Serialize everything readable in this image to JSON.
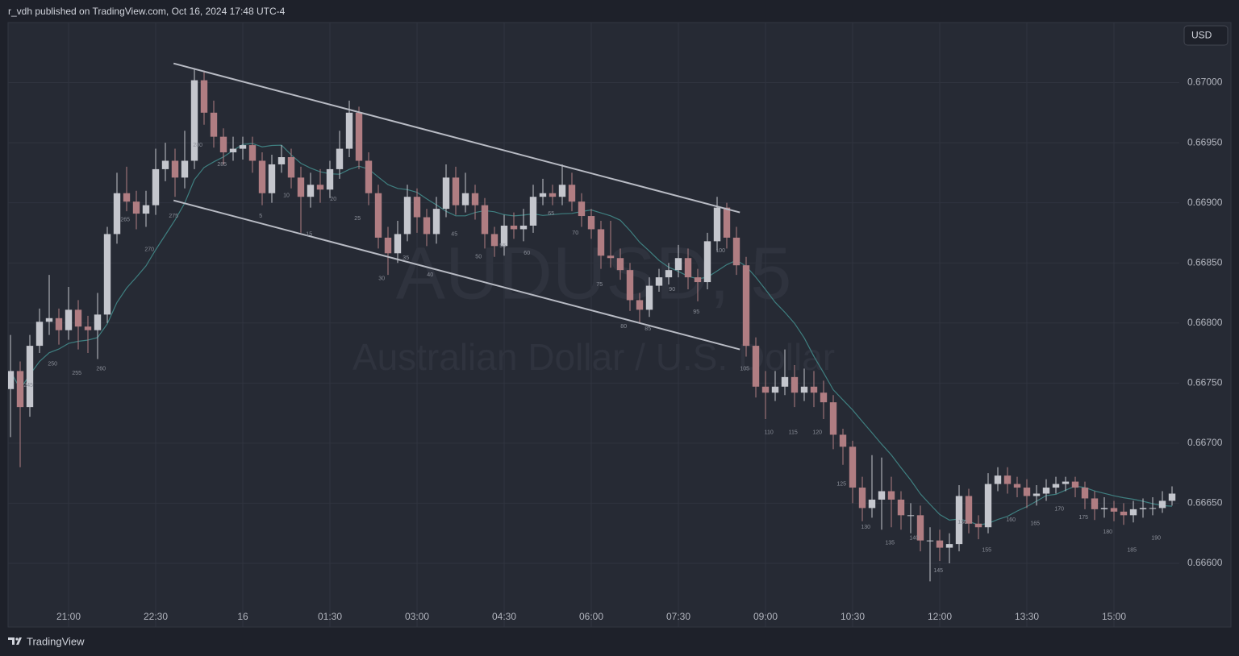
{
  "header": {
    "text": "r_vdh published on TradingView.com, Oct 16, 2024 17:48 UTC-4"
  },
  "footer": {
    "brand": "TradingView"
  },
  "currency_button": "USD",
  "chart_data": {
    "type": "candlestick",
    "symbol": "AUDUSD, 5",
    "description": "Australian Dollar / U.S. Dollar",
    "up_color": "#c4c6cd",
    "down_color": "#b07d82",
    "grid": true,
    "xlim": [
      -0.5,
      241.5
    ],
    "ylim": [
      0.66547,
      0.6705
    ],
    "xticks": [
      {
        "value": 12,
        "label": "21:00"
      },
      {
        "value": 30,
        "label": "22:30"
      },
      {
        "value": 48,
        "label": "16"
      },
      {
        "value": 66,
        "label": "01:30"
      },
      {
        "value": 84,
        "label": "03:00"
      },
      {
        "value": 102,
        "label": "04:30"
      },
      {
        "value": 120,
        "label": "06:00"
      },
      {
        "value": 138,
        "label": "07:30"
      },
      {
        "value": 156,
        "label": "09:00"
      },
      {
        "value": 174,
        "label": "10:30"
      },
      {
        "value": 192,
        "label": "12:00"
      },
      {
        "value": 210,
        "label": "13:30"
      },
      {
        "value": 228,
        "label": "15:00"
      }
    ],
    "yticks": [
      {
        "value": 0.67,
        "label": "0.67000"
      },
      {
        "value": 0.6695,
        "label": "0.66950"
      },
      {
        "value": 0.669,
        "label": "0.66900"
      },
      {
        "value": 0.6685,
        "label": "0.66850"
      },
      {
        "value": 0.668,
        "label": "0.66800"
      },
      {
        "value": 0.6675,
        "label": "0.66750"
      },
      {
        "value": 0.667,
        "label": "0.66700"
      },
      {
        "value": 0.6665,
        "label": "0.66650"
      },
      {
        "value": 0.666,
        "label": "0.66600"
      }
    ],
    "x": [
      0,
      2,
      4,
      6,
      8,
      10,
      12,
      14,
      16,
      18,
      20,
      22,
      24,
      26,
      28,
      30,
      32,
      34,
      36,
      38,
      40,
      42,
      44,
      46,
      48,
      50,
      52,
      54,
      56,
      58,
      60,
      62,
      64,
      66,
      68,
      70,
      72,
      74,
      76,
      78,
      80,
      82,
      84,
      86,
      88,
      90,
      92,
      94,
      96,
      98,
      100,
      102,
      104,
      106,
      108,
      110,
      112,
      114,
      116,
      118,
      120,
      122,
      124,
      126,
      128,
      130,
      132,
      134,
      136,
      138,
      140,
      142,
      144,
      146,
      148,
      150,
      152,
      154,
      156,
      158,
      160,
      162,
      164,
      166,
      168,
      170,
      172,
      174,
      176,
      178,
      180,
      182,
      184,
      186,
      188,
      190,
      192,
      194,
      196,
      198,
      200,
      202,
      204,
      206,
      208,
      210,
      212,
      214,
      216,
      218,
      220,
      222,
      224,
      226,
      228,
      230,
      232,
      234,
      236,
      238,
      240
    ],
    "open": [
      0.66745,
      0.6676,
      0.6673,
      0.66781,
      0.66801,
      0.66804,
      0.66794,
      0.66811,
      0.66797,
      0.66794,
      0.66807,
      0.66874,
      0.66908,
      0.66901,
      0.66891,
      0.66898,
      0.66928,
      0.66935,
      0.66921,
      0.66935,
      0.67002,
      0.66975,
      0.66955,
      0.66942,
      0.66945,
      0.66948,
      0.66935,
      0.66908,
      0.66932,
      0.66938,
      0.66921,
      0.66905,
      0.66915,
      0.66911,
      0.66928,
      0.66945,
      0.66975,
      0.66935,
      0.66908,
      0.66871,
      0.66858,
      0.66874,
      0.66905,
      0.66888,
      0.66874,
      0.66895,
      0.66921,
      0.66898,
      0.66908,
      0.66898,
      0.66874,
      0.66864,
      0.66881,
      0.66878,
      0.66881,
      0.66905,
      0.66908,
      0.66905,
      0.66915,
      0.66901,
      0.66889,
      0.66878,
      0.66856,
      0.66854,
      0.66844,
      0.66819,
      0.66811,
      0.66831,
      0.66838,
      0.66844,
      0.66854,
      0.66838,
      0.66834,
      0.66868,
      0.66896,
      0.66871,
      0.66848,
      0.66781,
      0.66747,
      0.66742,
      0.66747,
      0.66755,
      0.66742,
      0.66747,
      0.66742,
      0.66734,
      0.66707,
      0.66697,
      0.66663,
      0.66646,
      0.66653,
      0.6666,
      0.66653,
      0.6664,
      0.6664,
      0.66619,
      0.66619,
      0.66613,
      0.66616,
      0.66656,
      0.66633,
      0.6663,
      0.66666,
      0.66673,
      0.66666,
      0.66663,
      0.66656,
      0.66658,
      0.66663,
      0.66666,
      0.66668,
      0.66663,
      0.66654,
      0.66645,
      0.66646,
      0.66643,
      0.6664,
      0.66645,
      0.66646,
      0.66646,
      0.66652
    ],
    "high": [
      0.6679,
      0.66768,
      0.6679,
      0.66812,
      0.6684,
      0.66812,
      0.6683,
      0.66819,
      0.66806,
      0.66825,
      0.6688,
      0.66925,
      0.6693,
      0.6691,
      0.6691,
      0.66945,
      0.6695,
      0.66945,
      0.6696,
      0.67012,
      0.6701,
      0.66985,
      0.66962,
      0.66955,
      0.66955,
      0.66955,
      0.66942,
      0.6694,
      0.66948,
      0.66945,
      0.6693,
      0.66925,
      0.66928,
      0.66935,
      0.6696,
      0.66985,
      0.6698,
      0.66942,
      0.66915,
      0.6688,
      0.66885,
      0.66915,
      0.66912,
      0.66895,
      0.66905,
      0.66932,
      0.6693,
      0.66925,
      0.66915,
      0.66904,
      0.6688,
      0.6689,
      0.66892,
      0.66895,
      0.66915,
      0.6692,
      0.66915,
      0.66932,
      0.66925,
      0.66908,
      0.66895,
      0.66885,
      0.66885,
      0.66862,
      0.6685,
      0.66825,
      0.66838,
      0.66845,
      0.6685,
      0.66865,
      0.66862,
      0.66845,
      0.66875,
      0.66905,
      0.669,
      0.6688,
      0.66855,
      0.66788,
      0.6676,
      0.6676,
      0.66778,
      0.66765,
      0.66762,
      0.6676,
      0.66752,
      0.6674,
      0.66712,
      0.66702,
      0.66672,
      0.6669,
      0.66688,
      0.66672,
      0.6666,
      0.6665,
      0.66648,
      0.6663,
      0.66628,
      0.66625,
      0.66665,
      0.66662,
      0.6664,
      0.66675,
      0.6668,
      0.6668,
      0.66672,
      0.6667,
      0.66665,
      0.6667,
      0.66672,
      0.66672,
      0.66672,
      0.66668,
      0.6666,
      0.66655,
      0.66652,
      0.6665,
      0.66652,
      0.66654,
      0.66655,
      0.6666,
      0.66664
    ],
    "low": [
      0.66705,
      0.6668,
      0.66722,
      0.66775,
      0.6679,
      0.66782,
      0.66786,
      0.66778,
      0.66775,
      0.6677,
      0.668,
      0.66866,
      0.66893,
      0.66878,
      0.6688,
      0.6689,
      0.66918,
      0.66905,
      0.66912,
      0.66928,
      0.66965,
      0.66946,
      0.66932,
      0.66935,
      0.66936,
      0.66925,
      0.66898,
      0.669,
      0.66925,
      0.66912,
      0.66875,
      0.66896,
      0.669,
      0.66904,
      0.6692,
      0.66938,
      0.66928,
      0.66898,
      0.66862,
      0.6684,
      0.6685,
      0.66868,
      0.66875,
      0.66864,
      0.66866,
      0.66888,
      0.6689,
      0.66892,
      0.66886,
      0.66862,
      0.66855,
      0.66856,
      0.6687,
      0.66868,
      0.66875,
      0.66898,
      0.66898,
      0.66898,
      0.66893,
      0.6688,
      0.6687,
      0.66845,
      0.66846,
      0.66836,
      0.6681,
      0.668,
      0.66805,
      0.66826,
      0.66832,
      0.66838,
      0.66828,
      0.66818,
      0.66828,
      0.6686,
      0.66862,
      0.6684,
      0.66772,
      0.66738,
      0.6672,
      0.66735,
      0.6674,
      0.6673,
      0.66735,
      0.6673,
      0.6672,
      0.66695,
      0.66682,
      0.6665,
      0.66635,
      0.66638,
      0.66628,
      0.6663,
      0.66628,
      0.66625,
      0.6661,
      0.66585,
      0.66602,
      0.666,
      0.6661,
      0.66625,
      0.6662,
      0.66625,
      0.6666,
      0.66658,
      0.66655,
      0.66646,
      0.66648,
      0.66652,
      0.66658,
      0.6666,
      0.66655,
      0.66645,
      0.66636,
      0.66638,
      0.66635,
      0.66632,
      0.66634,
      0.66638,
      0.6664,
      0.66642,
      0.66648
    ],
    "close": [
      0.6676,
      0.6673,
      0.66781,
      0.66801,
      0.66804,
      0.66794,
      0.66811,
      0.66797,
      0.66794,
      0.66807,
      0.66874,
      0.66908,
      0.66901,
      0.66891,
      0.66898,
      0.66928,
      0.66935,
      0.66921,
      0.66935,
      0.67002,
      0.66975,
      0.66955,
      0.66942,
      0.66945,
      0.66948,
      0.66935,
      0.66908,
      0.66932,
      0.66938,
      0.66921,
      0.66905,
      0.66915,
      0.66911,
      0.66928,
      0.66945,
      0.66975,
      0.66935,
      0.66908,
      0.66871,
      0.66858,
      0.66874,
      0.66905,
      0.66888,
      0.66874,
      0.66895,
      0.66921,
      0.66898,
      0.66908,
      0.66898,
      0.66874,
      0.66864,
      0.66881,
      0.66878,
      0.66881,
      0.66905,
      0.66908,
      0.66905,
      0.66915,
      0.66901,
      0.66889,
      0.66878,
      0.66856,
      0.66854,
      0.66844,
      0.66819,
      0.66811,
      0.66831,
      0.66838,
      0.66844,
      0.66854,
      0.66838,
      0.66834,
      0.66868,
      0.66896,
      0.66871,
      0.66848,
      0.66781,
      0.66747,
      0.66742,
      0.66747,
      0.66755,
      0.66742,
      0.66747,
      0.66742,
      0.66734,
      0.66707,
      0.66697,
      0.66663,
      0.66646,
      0.66653,
      0.6666,
      0.66653,
      0.6664,
      0.6664,
      0.66619,
      0.66619,
      0.66613,
      0.66616,
      0.66656,
      0.66633,
      0.6663,
      0.66666,
      0.66673,
      0.66666,
      0.66663,
      0.66656,
      0.66658,
      0.66663,
      0.66666,
      0.66668,
      0.66663,
      0.66654,
      0.66645,
      0.66646,
      0.66643,
      0.6664,
      0.66645,
      0.66646,
      0.66646,
      0.66652,
      0.66658
    ],
    "moving_average": {
      "period": 10,
      "color": "#3f7f80"
    },
    "channel": {
      "color": "#b8bbc4",
      "lines": [
        {
          "x": [
            33.7,
            150.7
          ],
          "y": [
            0.67016,
            0.66892
          ]
        },
        {
          "x": [
            33.7,
            150.7
          ],
          "y": [
            0.66902,
            0.66778
          ]
        }
      ]
    },
    "bar_labels": [
      {
        "text": "245",
        "x": 3.7,
        "y": 0.66748
      },
      {
        "text": "250",
        "x": 8.7,
        "y": 0.66766
      },
      {
        "text": "255",
        "x": 13.7,
        "y": 0.66758
      },
      {
        "text": "260",
        "x": 18.7,
        "y": 0.66762
      },
      {
        "text": "265",
        "x": 23.7,
        "y": 0.66886
      },
      {
        "text": "270",
        "x": 28.7,
        "y": 0.66861
      },
      {
        "text": "275",
        "x": 33.7,
        "y": 0.66889
      },
      {
        "text": "280",
        "x": 38.7,
        "y": 0.66948
      },
      {
        "text": "285",
        "x": 43.7,
        "y": 0.66932
      },
      {
        "text": "5",
        "x": 51.7,
        "y": 0.66889
      },
      {
        "text": "10",
        "x": 57,
        "y": 0.66906
      },
      {
        "text": "15",
        "x": 61.7,
        "y": 0.66874
      },
      {
        "text": "20",
        "x": 66.7,
        "y": 0.66903
      },
      {
        "text": "25",
        "x": 71.7,
        "y": 0.66887
      },
      {
        "text": "30",
        "x": 76.7,
        "y": 0.66837
      },
      {
        "text": "35",
        "x": 81.7,
        "y": 0.66854
      },
      {
        "text": "40",
        "x": 86.7,
        "y": 0.6684
      },
      {
        "text": "45",
        "x": 91.7,
        "y": 0.66874
      },
      {
        "text": "50",
        "x": 96.7,
        "y": 0.66855
      },
      {
        "text": "55",
        "x": 101.7,
        "y": 0.66864
      },
      {
        "text": "60",
        "x": 106.7,
        "y": 0.66858
      },
      {
        "text": "65",
        "x": 111.7,
        "y": 0.66891
      },
      {
        "text": "70",
        "x": 116.7,
        "y": 0.66875
      },
      {
        "text": "75",
        "x": 121.7,
        "y": 0.66832
      },
      {
        "text": "80",
        "x": 126.7,
        "y": 0.66797
      },
      {
        "text": "85",
        "x": 131.7,
        "y": 0.66795
      },
      {
        "text": "90",
        "x": 136.7,
        "y": 0.66828
      },
      {
        "text": "95",
        "x": 141.7,
        "y": 0.66809
      },
      {
        "text": "100",
        "x": 146.7,
        "y": 0.6686
      },
      {
        "text": "105",
        "x": 151.7,
        "y": 0.66762
      },
      {
        "text": "110",
        "x": 156.7,
        "y": 0.66709
      },
      {
        "text": "115",
        "x": 161.7,
        "y": 0.66709
      },
      {
        "text": "120",
        "x": 166.7,
        "y": 0.66709
      },
      {
        "text": "125",
        "x": 171.7,
        "y": 0.66666
      },
      {
        "text": "130",
        "x": 176.7,
        "y": 0.6663
      },
      {
        "text": "135",
        "x": 181.7,
        "y": 0.66617
      },
      {
        "text": "140",
        "x": 186.7,
        "y": 0.66621
      },
      {
        "text": "145",
        "x": 191.7,
        "y": 0.66594
      },
      {
        "text": "150",
        "x": 196.7,
        "y": 0.66634
      },
      {
        "text": "155",
        "x": 201.7,
        "y": 0.66611
      },
      {
        "text": "160",
        "x": 206.7,
        "y": 0.66636
      },
      {
        "text": "165",
        "x": 211.7,
        "y": 0.66633
      },
      {
        "text": "170",
        "x": 216.7,
        "y": 0.66645
      },
      {
        "text": "175",
        "x": 221.7,
        "y": 0.66638
      },
      {
        "text": "180",
        "x": 226.7,
        "y": 0.66626
      },
      {
        "text": "185",
        "x": 231.7,
        "y": 0.66611
      },
      {
        "text": "190",
        "x": 236.7,
        "y": 0.66621
      }
    ]
  }
}
